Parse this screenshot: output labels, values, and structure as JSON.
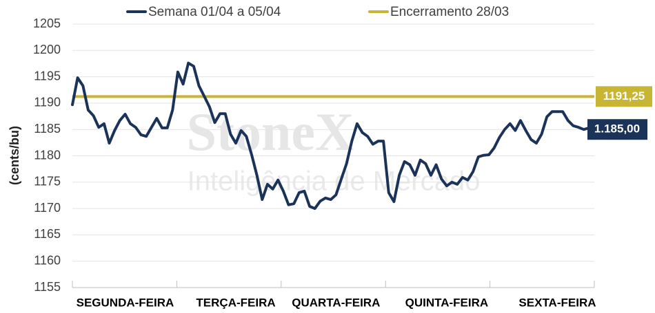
{
  "chart_data": {
    "type": "line",
    "ylabel": "(cents/bu)",
    "watermark": {
      "title": "StoneX",
      "subtitle": "Inteligência de Mercado"
    },
    "categories": [
      null,
      null,
      null,
      null,
      null,
      null,
      null,
      null,
      null,
      null,
      "SEGUNDA-FEIRA",
      null,
      null,
      null,
      null,
      null,
      null,
      null,
      null,
      null,
      null,
      null,
      null,
      null,
      null,
      null,
      null,
      null,
      null,
      null,
      null,
      "TERÇA-FEIRA",
      null,
      null,
      null,
      null,
      null,
      null,
      null,
      null,
      null,
      null,
      null,
      null,
      null,
      null,
      null,
      null,
      null,
      null,
      "QUARTA-FEIRA",
      null,
      null,
      null,
      null,
      null,
      null,
      null,
      null,
      null,
      null,
      null,
      null,
      null,
      null,
      null,
      null,
      null,
      null,
      null,
      null,
      "QUINTA-FEIRA",
      null,
      null,
      null,
      null,
      null,
      null,
      null,
      null,
      null,
      null,
      null,
      null,
      null,
      null,
      null,
      null,
      null,
      null,
      null,
      null,
      "SEXTA-FEIRA",
      null,
      null,
      null,
      null,
      null,
      null,
      null
    ],
    "series": [
      {
        "name": "Semana 01/04 a 05/04",
        "color": "#1b3358",
        "values": [
          1189.7,
          1194.8,
          1193.3,
          1188.7,
          1187.6,
          1185.4,
          1186.1,
          1182.4,
          1184.8,
          1186.7,
          1187.9,
          1186.1,
          1185.4,
          1184.0,
          1183.7,
          1185.4,
          1187.1,
          1185.3,
          1185.3,
          1188.7,
          1195.9,
          1193.6,
          1197.6,
          1197.0,
          1193.3,
          1191.3,
          1189.3,
          1186.3,
          1188.0,
          1188.0,
          1184.1,
          1182.4,
          1184.8,
          1183.7,
          1180.2,
          1176.3,
          1171.7,
          1174.6,
          1173.7,
          1175.4,
          1173.3,
          1170.7,
          1170.9,
          1173.0,
          1173.3,
          1170.4,
          1170.0,
          1171.4,
          1172.0,
          1171.7,
          1172.6,
          1175.6,
          1178.5,
          1182.8,
          1186.1,
          1184.4,
          1183.7,
          1182.2,
          1182.8,
          1182.8,
          1173.0,
          1171.3,
          1176.3,
          1178.9,
          1178.3,
          1176.3,
          1179.2,
          1178.5,
          1176.3,
          1178.3,
          1175.6,
          1174.3,
          1175.0,
          1174.6,
          1175.9,
          1175.4,
          1177.0,
          1179.8,
          1180.1,
          1180.2,
          1181.5,
          1183.5,
          1185.0,
          1186.1,
          1184.8,
          1186.7,
          1184.8,
          1183.1,
          1182.4,
          1184.1,
          1187.4,
          1188.4,
          1188.4,
          1188.4,
          1186.7,
          1185.7,
          1185.4,
          1185.0,
          1185.3,
          1185.0
        ],
        "end_label": "1.185,00"
      }
    ],
    "reference_lines": [
      {
        "name": "Encerramento 28/03",
        "value": 1191.25,
        "label": "1191,25",
        "color": "#c8b534"
      }
    ],
    "ylim": [
      1155,
      1205
    ],
    "yticks": [
      1155,
      1160,
      1165,
      1170,
      1175,
      1180,
      1185,
      1190,
      1195,
      1200,
      1205
    ],
    "grid": true,
    "legend": "top"
  }
}
